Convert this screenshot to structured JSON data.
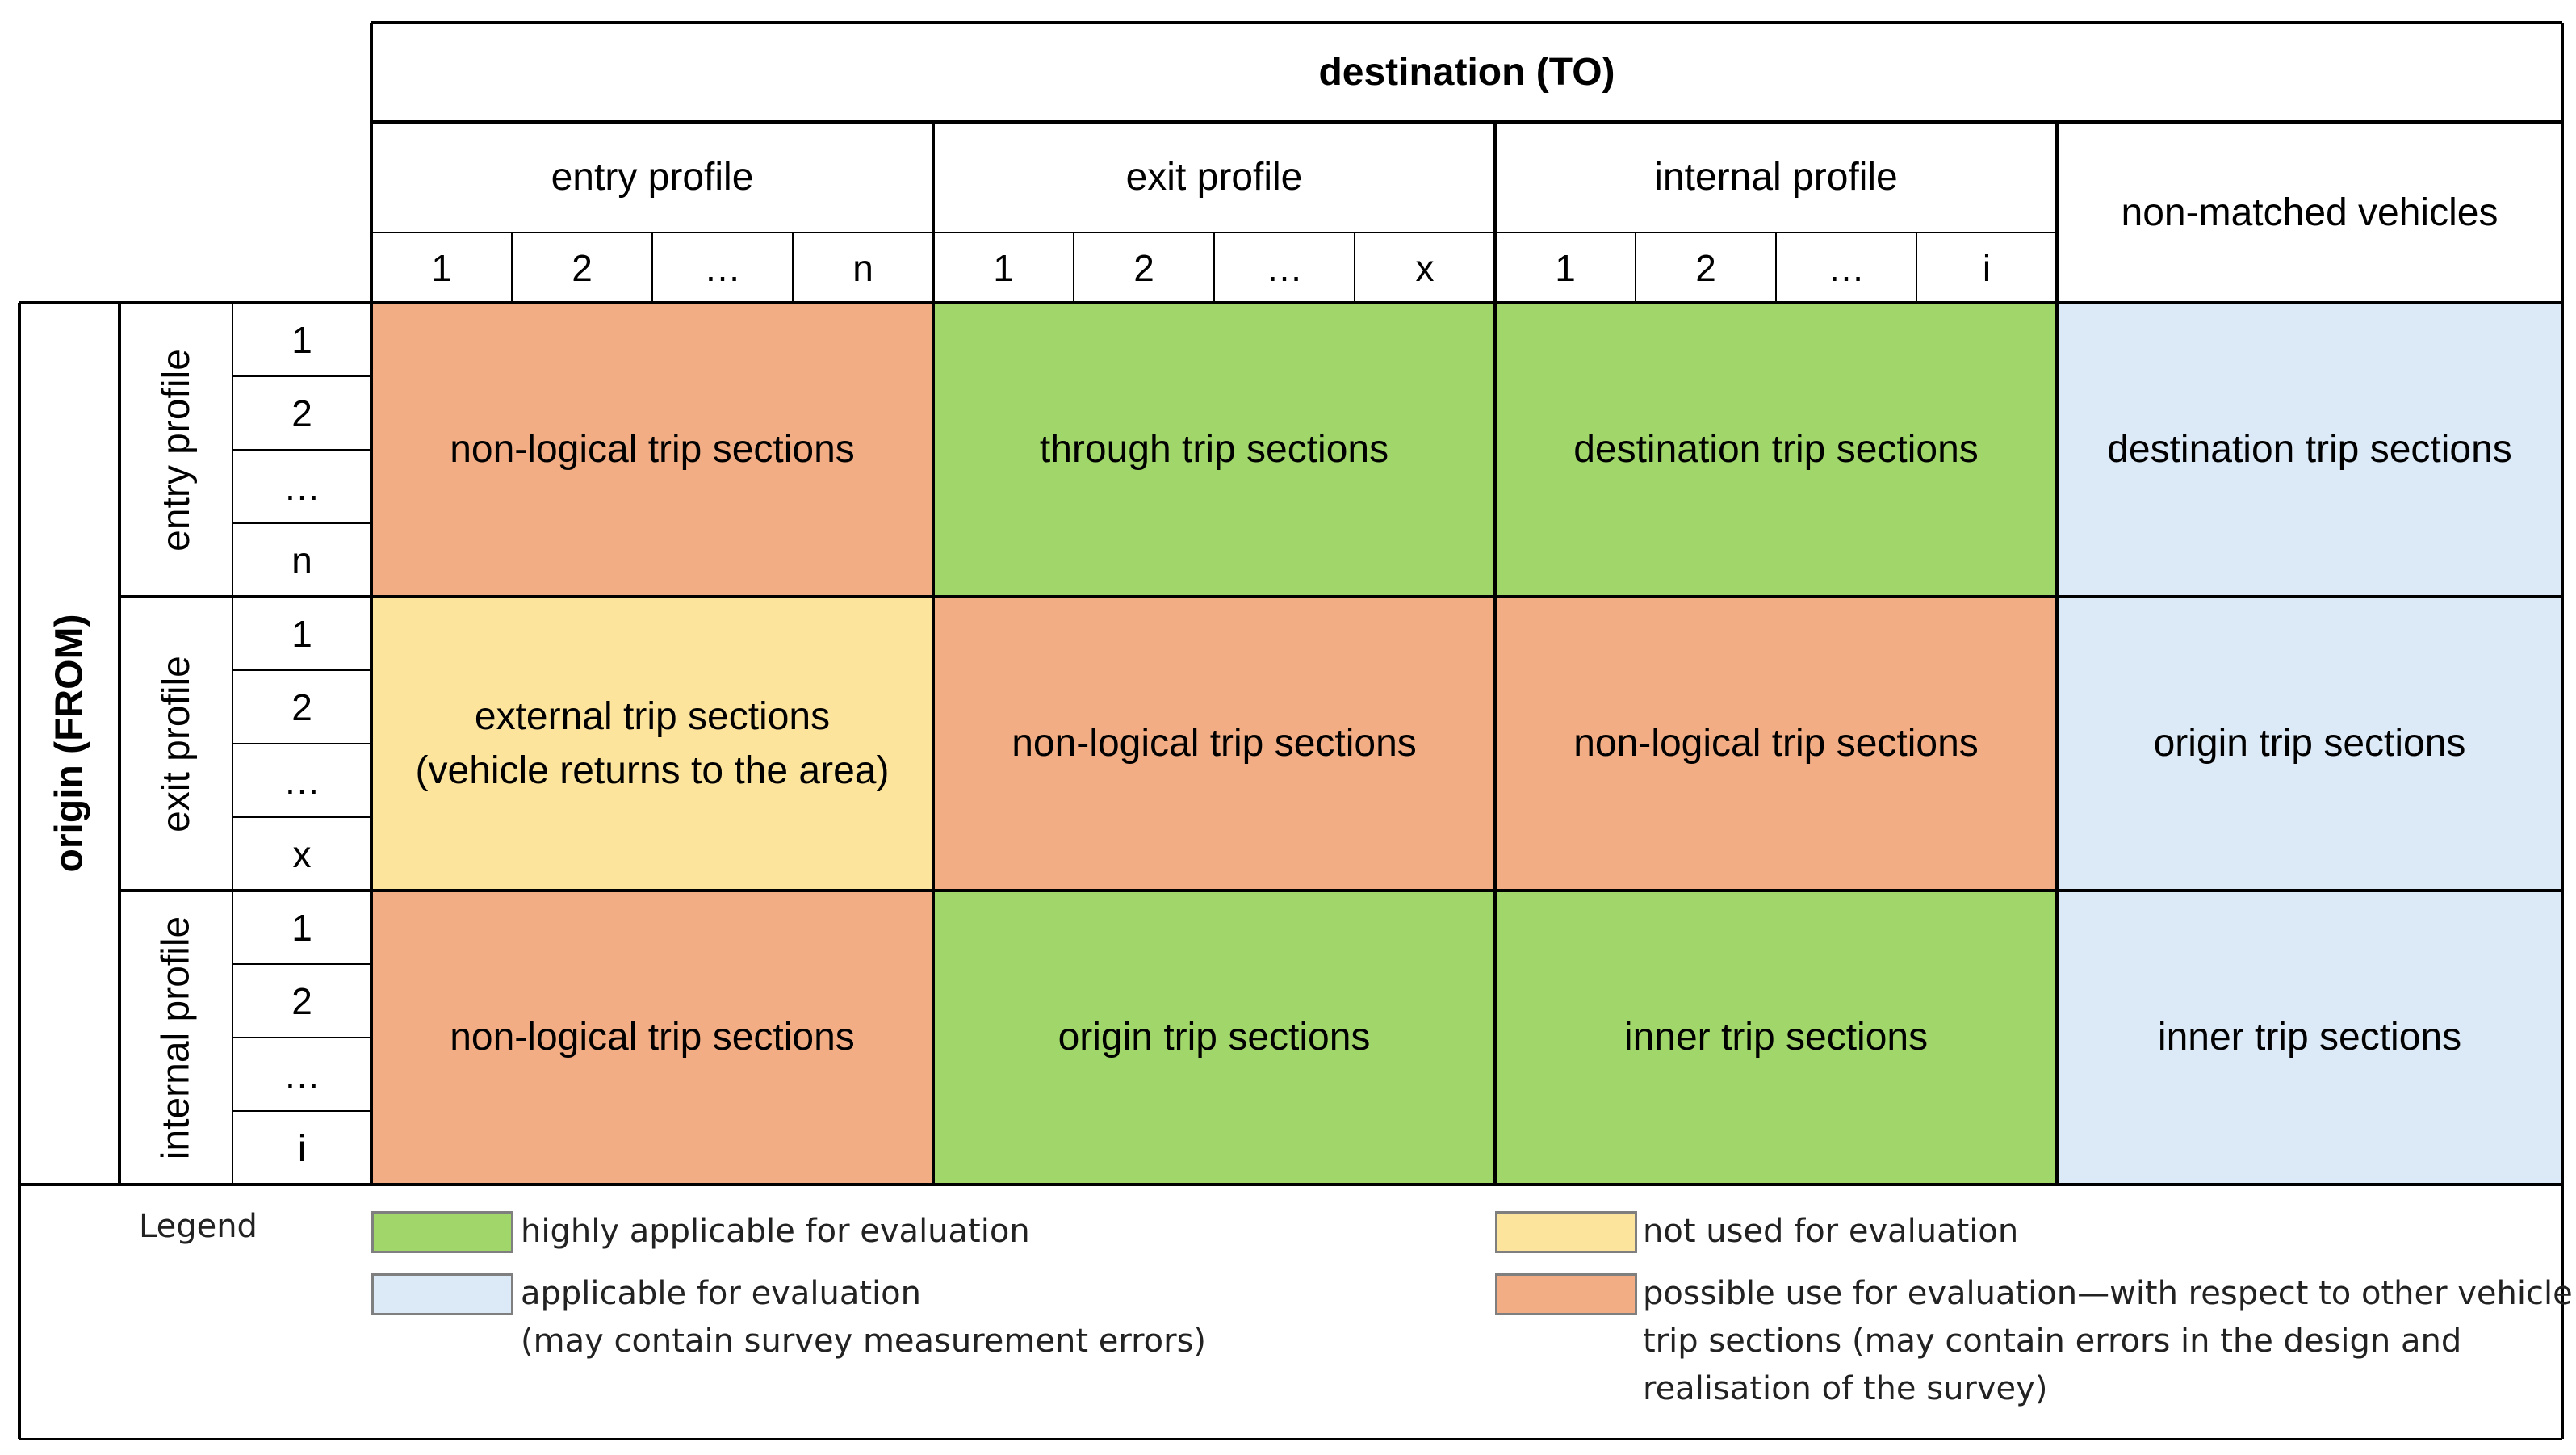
{
  "colors": {
    "green": "#a1d66a",
    "blue": "#dce9f6",
    "yellow": "#fde49c",
    "orange": "#f3ad84",
    "border": "#000000"
  },
  "header": {
    "destination_title": "destination (TO)",
    "origin_title": "origin (FROM)",
    "columns": [
      {
        "label": "entry profile",
        "sub": [
          "1",
          "2",
          "…",
          "n"
        ]
      },
      {
        "label": "exit profile",
        "sub": [
          "1",
          "2",
          "…",
          "x"
        ]
      },
      {
        "label": "internal profile",
        "sub": [
          "1",
          "2",
          "…",
          "i"
        ]
      },
      {
        "label": "non-matched vehicles"
      }
    ],
    "rows": [
      {
        "label": "entry profile",
        "sub": [
          "1",
          "2",
          "…",
          "n"
        ]
      },
      {
        "label": "exit profile",
        "sub": [
          "1",
          "2",
          "…",
          "x"
        ]
      },
      {
        "label": "internal profile",
        "sub": [
          "1",
          "2",
          "…",
          "i"
        ]
      }
    ]
  },
  "matrix": [
    [
      {
        "text": "non-logical trip sections",
        "color": "orange"
      },
      {
        "text": "through trip sections",
        "color": "green"
      },
      {
        "text": "destination trip sections",
        "color": "green"
      },
      {
        "text": "destination trip sections",
        "color": "blue"
      }
    ],
    [
      {
        "text": "external trip sections",
        "text2": "(vehicle returns to the area)",
        "color": "yellow"
      },
      {
        "text": "non-logical trip sections",
        "color": "orange"
      },
      {
        "text": "non-logical trip sections",
        "color": "orange"
      },
      {
        "text": "origin trip sections",
        "color": "blue"
      }
    ],
    [
      {
        "text": "non-logical trip sections",
        "color": "orange"
      },
      {
        "text": "origin trip sections",
        "color": "green"
      },
      {
        "text": "inner trip sections",
        "color": "green"
      },
      {
        "text": "inner trip sections",
        "color": "blue"
      }
    ]
  ],
  "legend": {
    "title": "Legend",
    "items": [
      {
        "color": "green",
        "lines": [
          "highly applicable for evaluation"
        ]
      },
      {
        "color": "blue",
        "lines": [
          "applicable for evaluation",
          "(may contain survey measurement errors)"
        ]
      },
      {
        "color": "yellow",
        "lines": [
          "not used for evaluation"
        ]
      },
      {
        "color": "orange",
        "lines": [
          "possible use for evaluation—with respect to other vehicle",
          "trip sections (may contain errors in the design and",
          "realisation of the survey)"
        ]
      }
    ]
  }
}
